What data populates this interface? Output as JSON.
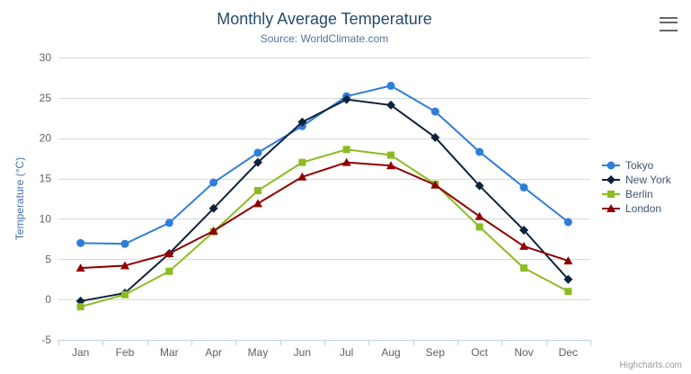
{
  "chart_data": {
    "type": "line",
    "title": "Monthly Average Temperature",
    "subtitle": "Source: WorldClimate.com",
    "xlabel": "",
    "ylabel": "Temperature (°C)",
    "categories": [
      "Jan",
      "Feb",
      "Mar",
      "Apr",
      "May",
      "Jun",
      "Jul",
      "Aug",
      "Sep",
      "Oct",
      "Nov",
      "Dec"
    ],
    "ylim": [
      -5,
      30
    ],
    "yticks": [
      -5,
      0,
      5,
      10,
      15,
      20,
      25,
      30
    ],
    "grid": true,
    "legend_position": "right-middle",
    "series": [
      {
        "name": "Tokyo",
        "color": "#2f7ed8",
        "marker": "circle",
        "values": [
          7.0,
          6.9,
          9.5,
          14.5,
          18.2,
          21.5,
          25.2,
          26.5,
          23.3,
          18.3,
          13.9,
          9.6
        ]
      },
      {
        "name": "New York",
        "color": "#0d233a",
        "marker": "diamond",
        "values": [
          -0.2,
          0.8,
          5.7,
          11.3,
          17.0,
          22.0,
          24.8,
          24.1,
          20.1,
          14.1,
          8.6,
          2.5
        ]
      },
      {
        "name": "Berlin",
        "color": "#8bbc21",
        "marker": "square",
        "values": [
          -0.9,
          0.6,
          3.5,
          8.4,
          13.5,
          17.0,
          18.6,
          17.9,
          14.3,
          9.0,
          3.9,
          1.0
        ]
      },
      {
        "name": "London",
        "color": "#910000",
        "marker": "triangle",
        "values": [
          3.9,
          4.2,
          5.7,
          8.5,
          11.9,
          15.2,
          17.0,
          16.6,
          14.2,
          10.3,
          6.6,
          4.8
        ]
      }
    ],
    "credits": "Highcharts.com",
    "export_menu_icon": "hamburger-icon",
    "colors": {
      "title": "#274b6d",
      "subtitle": "#4d759e",
      "axis_labels": "#606060",
      "y_axis_title": "#4572a7",
      "grid_line": "#d8d8d8",
      "axis_line": "#c0d0e0",
      "legend_text": "#3e576f",
      "credits": "#999999",
      "menu_icon": "#666666",
      "background": "#ffffff"
    }
  }
}
